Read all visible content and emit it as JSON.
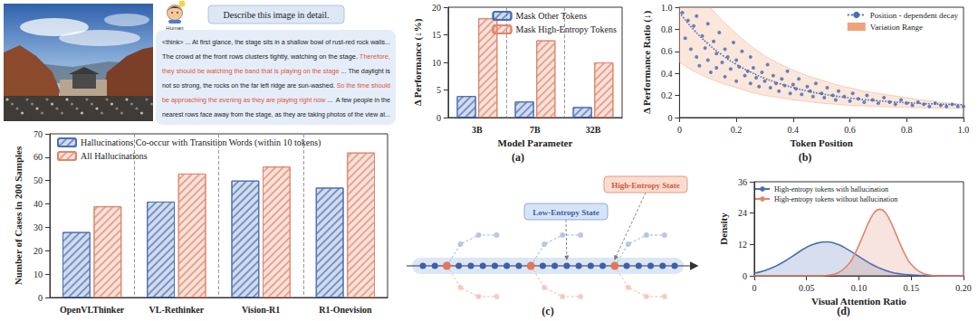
{
  "chart_data": [
    {
      "type": "bar",
      "y_label": "Number of Cases in 200 Samples",
      "categories": [
        "OpenVLThinker",
        "VL-Rethinker",
        "Vision-R1",
        "R1-Onevision"
      ],
      "series": [
        {
          "name": "Hallucinations Co-occur with Transition Words (within 10 tokens)",
          "color": "#4a6fb5",
          "values": [
            28,
            41,
            50,
            47
          ]
        },
        {
          "name": "All Hallucinations",
          "color": "#e0866a",
          "values": [
            39,
            53,
            56,
            62
          ]
        }
      ],
      "ylim": [
        0,
        70
      ],
      "yticks": [
        0,
        10,
        20,
        30,
        40,
        50,
        60,
        70
      ],
      "legend": "upper left"
    },
    {
      "type": "bar",
      "title": "(a)",
      "x_label": "Model Parameter",
      "y_label": "Δ Performance (↓%)",
      "categories": [
        "3B",
        "7B",
        "32B"
      ],
      "series": [
        {
          "name": "Mask Other Tokens",
          "color": "#4a6fb5",
          "values": [
            3.9,
            2.9,
            1.9
          ]
        },
        {
          "name": "Mask High-Entropy Tokens",
          "color": "#e0866a",
          "values": [
            18,
            14,
            10
          ]
        }
      ],
      "ylim": [
        0,
        20
      ],
      "yticks": [
        0,
        5,
        10,
        15,
        20
      ],
      "legend": "upper right"
    },
    {
      "type": "scatter",
      "title": "(b)",
      "x_label": "Token Position",
      "y_label": "Δ Performance Ratio (↓)",
      "xlim": [
        0,
        1
      ],
      "xticks": [
        0,
        0.2,
        0.4,
        0.6,
        0.8,
        {
          "value": 1,
          "label": "1.0"
        }
      ],
      "ylim": [
        0,
        1
      ],
      "yticks": [
        0,
        0.2,
        0.4,
        0.6,
        0.8,
        {
          "value": 1,
          "label": "1.0"
        }
      ],
      "legend": "upper right",
      "series": [
        {
          "type": "scatter",
          "color": "#4a6fb5",
          "marker": "circle",
          "x": [
            0.01,
            0.02,
            0.03,
            0.04,
            0.05,
            0.06,
            0.06,
            0.07,
            0.08,
            0.09,
            0.1,
            0.1,
            0.11,
            0.12,
            0.13,
            0.13,
            0.14,
            0.15,
            0.16,
            0.16,
            0.17,
            0.18,
            0.19,
            0.2,
            0.2,
            0.21,
            0.22,
            0.23,
            0.24,
            0.25,
            0.25,
            0.26,
            0.27,
            0.28,
            0.29,
            0.3,
            0.31,
            0.32,
            0.33,
            0.34,
            0.35,
            0.36,
            0.37,
            0.38,
            0.39,
            0.4,
            0.41,
            0.42,
            0.43,
            0.45,
            0.46,
            0.47,
            0.48,
            0.5,
            0.51,
            0.52,
            0.54,
            0.55,
            0.56,
            0.58,
            0.6,
            0.61,
            0.63,
            0.65,
            0.66,
            0.68,
            0.7,
            0.72,
            0.74,
            0.76,
            0.78,
            0.8,
            0.82,
            0.84,
            0.86,
            0.88,
            0.9,
            0.92,
            0.94,
            0.96,
            0.98,
            1.0
          ],
          "values": [
            0.95,
            0.72,
            0.88,
            0.62,
            0.83,
            0.55,
            0.92,
            0.47,
            0.74,
            0.63,
            0.85,
            0.52,
            0.41,
            0.69,
            0.58,
            0.45,
            0.77,
            0.5,
            0.37,
            0.62,
            0.55,
            0.44,
            0.68,
            0.33,
            0.52,
            0.46,
            0.6,
            0.38,
            0.42,
            0.31,
            0.55,
            0.45,
            0.36,
            0.28,
            0.41,
            0.33,
            0.48,
            0.27,
            0.38,
            0.31,
            0.24,
            0.35,
            0.29,
            0.42,
            0.22,
            0.3,
            0.26,
            0.35,
            0.21,
            0.28,
            0.24,
            0.19,
            0.31,
            0.22,
            0.18,
            0.27,
            0.2,
            0.16,
            0.24,
            0.19,
            0.15,
            0.22,
            0.17,
            0.14,
            0.2,
            0.16,
            0.13,
            0.18,
            0.14,
            0.12,
            0.16,
            0.13,
            0.11,
            0.14,
            0.12,
            0.1,
            0.13,
            0.11,
            0.1,
            0.12,
            0.1,
            0.1
          ]
        },
        {
          "type": "line",
          "name": "Position - dependent decay",
          "color": "#4a6fb5",
          "line_style": "dotted",
          "x": [
            0,
            0.05,
            0.1,
            0.15,
            0.2,
            0.25,
            0.3,
            0.35,
            0.4,
            0.45,
            0.5,
            0.55,
            0.6,
            0.65,
            0.7,
            0.75,
            0.8,
            0.85,
            0.9,
            0.95,
            1.0
          ],
          "values": [
            0.95,
            0.796,
            0.67,
            0.567,
            0.482,
            0.413,
            0.356,
            0.31,
            0.272,
            0.24,
            0.215,
            0.194,
            0.177,
            0.163,
            0.152,
            0.142,
            0.135,
            0.128,
            0.123,
            0.119,
            0.116
          ]
        },
        {
          "type": "band",
          "name": "Variation Range",
          "color": "#f0a27a",
          "x": [
            0,
            0.05,
            0.1,
            0.15,
            0.2,
            0.25,
            0.3,
            0.35,
            0.4,
            0.45,
            0.5,
            0.55,
            0.6,
            0.65,
            0.7,
            0.75,
            0.8,
            0.85,
            0.9,
            0.95,
            1.0
          ],
          "upper": [
            1.4,
            1.2,
            1.02,
            0.88,
            0.76,
            0.65,
            0.56,
            0.49,
            0.43,
            0.38,
            0.34,
            0.3,
            0.27,
            0.24,
            0.22,
            0.2,
            0.18,
            0.16,
            0.145,
            0.13,
            0.12
          ],
          "lower": [
            0.5,
            0.42,
            0.36,
            0.31,
            0.27,
            0.23,
            0.2,
            0.18,
            0.16,
            0.145,
            0.13,
            0.12,
            0.11,
            0.105,
            0.1,
            0.095,
            0.09,
            0.088,
            0.086,
            0.085,
            0.084
          ]
        }
      ]
    },
    {
      "type": "area",
      "title": "(d)",
      "x_label": "Visual Attention Ratio",
      "y_label": "Density",
      "xlim": [
        0,
        0.2
      ],
      "xticks": [
        0,
        0.05,
        {
          "value": 0.1,
          "label": "0.10"
        },
        0.15,
        {
          "value": 0.2,
          "label": "0.20"
        }
      ],
      "ylim": [
        0,
        36
      ],
      "yticks": [
        0,
        12,
        24,
        36
      ],
      "legend": "upper left",
      "series": [
        {
          "name": "High-entropy tokens with hallucination",
          "color": "#4a6fb5",
          "x": [
            0,
            0.01,
            0.02,
            0.03,
            0.04,
            0.05,
            0.06,
            0.07,
            0.08,
            0.09,
            0.1,
            0.11,
            0.12,
            0.13,
            0.14,
            0.15,
            0.16,
            0.17,
            0.18,
            0.19,
            0.2
          ],
          "values": [
            1.0,
            2.0,
            3.6,
            5.8,
            8.4,
            10.9,
            12.5,
            13.0,
            12.0,
            9.9,
            7.4,
            4.9,
            2.9,
            1.5,
            0.7,
            0.3,
            0.1,
            0,
            0,
            0,
            0
          ]
        },
        {
          "name": "High-entropy tokens without hallucination",
          "color": "#e0866a",
          "x": [
            0,
            0.02,
            0.04,
            0.06,
            0.07,
            0.08,
            0.09,
            0.095,
            0.1,
            0.105,
            0.11,
            0.115,
            0.12,
            0.125,
            0.13,
            0.135,
            0.14,
            0.145,
            0.15,
            0.16,
            0.17,
            0.18,
            0.2
          ],
          "values": [
            0,
            0,
            0,
            0,
            0.2,
            1.1,
            4.4,
            7.5,
            11.7,
            16.4,
            21.0,
            24.3,
            25.5,
            24.3,
            21.0,
            16.4,
            11.7,
            7.5,
            4.4,
            1.1,
            0.2,
            0,
            0
          ]
        }
      ]
    }
  ],
  "dialog": {
    "user": {
      "name": "Human",
      "prompt": "Describe this image in detail."
    },
    "response": [
      [
        {
          "text": "<think> ... At first glance, the stage sits in a shallow bowl of rust-red rock walls..."
        }
      ],
      [
        {
          "text": "The crowd at the front rows clusters tightly, watching on the stage. "
        },
        {
          "text": "Therefore,",
          "highlight": true
        }
      ],
      [
        {
          "text": "they should be watching the band that is playing on the stage",
          "highlight": true
        },
        {
          "text": " ... The daylight is"
        }
      ],
      [
        {
          "text": "not so strong, the rocks on the far left ridge are sun-washed. "
        },
        {
          "text": "So the time should",
          "highlight": true
        }
      ],
      [
        {
          "text": "be approaching the evening as they are playing right now",
          "highlight": true
        },
        {
          "text": " ...  A few people in the"
        }
      ],
      [
        {
          "text": "nearest rows face away from the stage, as they are taking photos of the view at..."
        }
      ]
    ]
  },
  "diagram": {
    "title": "(c)",
    "low_label": "Low-Entropy State",
    "high_label": "High-Entropy State",
    "nodes": [
      "low",
      "low",
      "high",
      "low",
      "low",
      "low",
      "low",
      "low",
      "low",
      "high",
      "low",
      "low",
      "low",
      "low",
      "low",
      "low",
      "high",
      "low",
      "low",
      "low",
      "low",
      "low"
    ]
  }
}
